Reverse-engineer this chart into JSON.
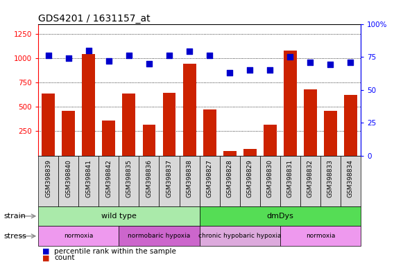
{
  "title": "GDS4201 / 1631157_at",
  "samples": [
    "GSM398839",
    "GSM398840",
    "GSM398841",
    "GSM398842",
    "GSM398835",
    "GSM398836",
    "GSM398837",
    "GSM398838",
    "GSM398827",
    "GSM398828",
    "GSM398829",
    "GSM398830",
    "GSM398831",
    "GSM398832",
    "GSM398833",
    "GSM398834"
  ],
  "counts": [
    640,
    460,
    1040,
    360,
    640,
    320,
    645,
    940,
    470,
    50,
    70,
    320,
    1080,
    680,
    460,
    620
  ],
  "percentile": [
    76,
    74,
    80,
    72,
    76,
    70,
    76,
    79,
    76,
    63,
    65,
    65,
    75,
    71,
    69,
    71
  ],
  "bar_color": "#cc2200",
  "dot_color": "#0000cc",
  "ylim_left": [
    0,
    1350
  ],
  "ylim_right": [
    0,
    100
  ],
  "yticks_left": [
    250,
    500,
    750,
    1000,
    1250
  ],
  "yticks_right": [
    0,
    25,
    50,
    75,
    100
  ],
  "strain_labels": [
    {
      "label": "wild type",
      "start": 0,
      "end": 8,
      "color": "#aaeaaa"
    },
    {
      "label": "dmDys",
      "start": 8,
      "end": 16,
      "color": "#55dd55"
    }
  ],
  "stress_labels": [
    {
      "label": "normoxia",
      "start": 0,
      "end": 4,
      "color": "#ee99ee"
    },
    {
      "label": "normobaric hypoxia",
      "start": 4,
      "end": 8,
      "color": "#cc66cc"
    },
    {
      "label": "chronic hypobaric hypoxia",
      "start": 8,
      "end": 12,
      "color": "#ddaadd"
    },
    {
      "label": "normoxia",
      "start": 12,
      "end": 16,
      "color": "#ee99ee"
    }
  ],
  "background_color": "white",
  "title_fontsize": 10,
  "tick_fontsize": 7.5,
  "sample_fontsize": 6.5,
  "bar_width": 0.65,
  "dot_size": 30
}
